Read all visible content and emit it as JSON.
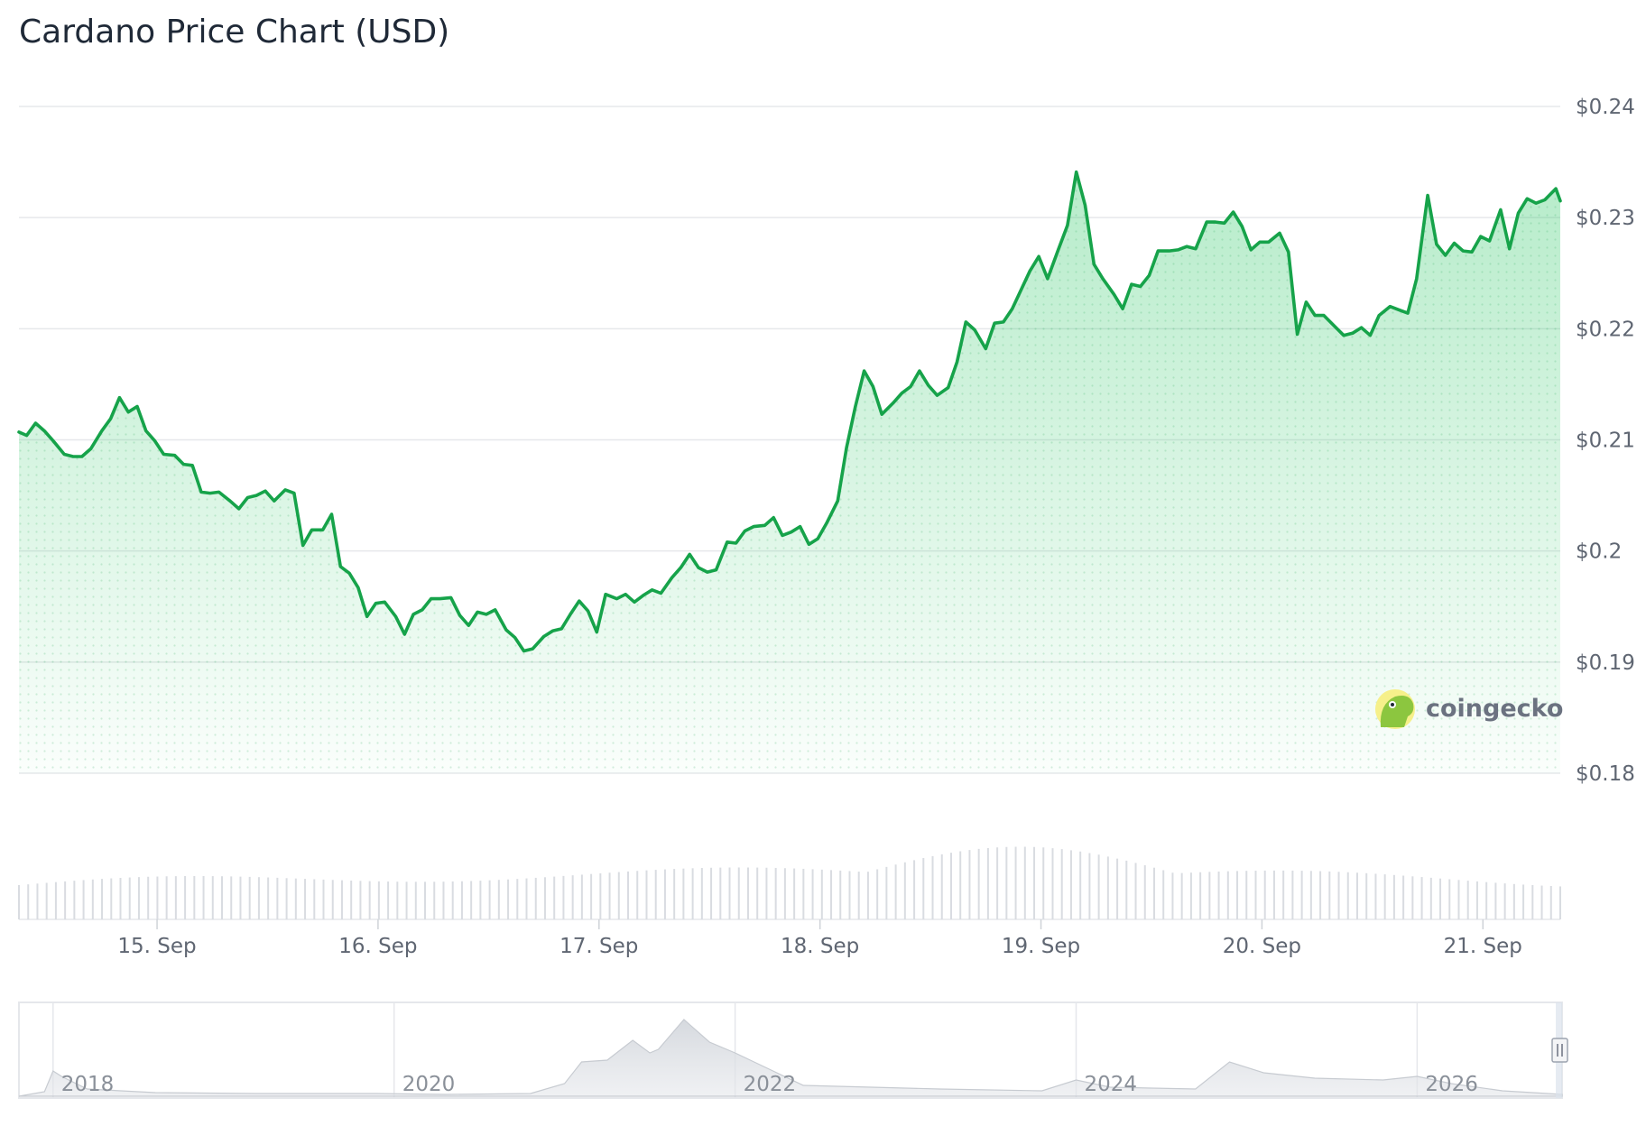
{
  "title": "Cardano Price Chart (USD)",
  "brand": {
    "name": "coingecko",
    "logo_icon": "gecko-logo-icon"
  },
  "colors": {
    "line": "#16a34a",
    "area": "#22c55e",
    "grid": "#e6e8eb",
    "volume": "#d9dce1",
    "navigator": "#e5e7eb"
  },
  "chart_data": {
    "type": "line",
    "title": "Cardano Price Chart (USD)",
    "ylim": [
      0.18,
      0.24
    ],
    "xlim": [
      14.375,
      21.35
    ],
    "y_ticks": [
      "$0.24",
      "$0.23",
      "$0.22",
      "$0.21",
      "$0.2",
      "$0.19",
      "$0.18"
    ],
    "y_tick_values": [
      0.24,
      0.23,
      0.22,
      0.21,
      0.2,
      0.19,
      0.18
    ],
    "x_ticks": [
      "15. Sep",
      "16. Sep",
      "17. Sep",
      "18. Sep",
      "19. Sep",
      "20. Sep",
      "21. Sep"
    ],
    "x_tick_values": [
      15,
      16,
      17,
      18,
      19,
      20,
      21
    ],
    "grid": true,
    "series": [
      {
        "x": [
          14.375,
          14.41,
          14.45,
          14.49,
          14.53,
          14.58,
          14.62,
          14.66,
          14.7,
          14.75,
          14.79,
          14.83,
          14.87,
          14.91,
          14.95,
          14.99,
          15.03,
          15.08,
          15.12,
          15.16,
          15.2,
          15.24,
          15.28,
          15.33,
          15.37,
          15.41,
          15.45,
          15.49,
          15.53,
          15.58,
          15.62,
          15.66,
          15.7,
          15.75,
          15.79,
          15.83,
          15.87,
          15.91,
          15.95,
          15.99,
          16.03,
          16.08,
          16.12,
          16.16,
          16.2,
          16.24,
          16.28,
          16.33,
          16.37,
          16.41,
          16.45,
          16.49,
          16.53,
          16.58,
          16.62,
          16.66,
          16.7,
          16.75,
          16.79,
          16.83,
          16.87,
          16.91,
          16.95,
          16.99,
          17.03,
          17.08,
          17.12,
          17.16,
          17.2,
          17.24,
          17.28,
          17.33,
          17.37,
          17.41,
          17.45,
          17.49,
          17.53,
          17.58,
          17.62,
          17.66,
          17.7,
          17.75,
          17.79,
          17.83,
          17.87,
          17.91,
          17.95,
          17.99,
          18.03,
          18.08,
          18.12,
          18.16,
          18.2,
          18.24,
          18.28,
          18.33,
          18.37,
          18.41,
          18.45,
          18.49,
          18.53,
          18.58,
          18.62,
          18.66,
          18.7,
          18.75,
          18.79,
          18.83,
          18.87,
          18.91,
          18.95,
          18.99,
          19.03,
          19.08,
          19.12,
          19.16,
          19.2,
          19.24,
          19.28,
          19.33,
          19.37,
          19.41,
          19.45,
          19.49,
          19.53,
          19.58,
          19.62,
          19.66,
          19.7,
          19.75,
          19.79,
          19.83,
          19.87,
          19.91,
          19.95,
          19.99,
          20.03,
          20.08,
          20.12,
          20.16,
          20.2,
          20.24,
          20.28,
          20.33,
          20.37,
          20.41,
          20.45,
          20.49,
          20.53,
          20.58,
          20.62,
          20.66,
          20.7,
          20.75,
          20.79,
          20.83,
          20.87,
          20.91,
          20.95,
          20.99,
          21.03,
          21.08,
          21.12,
          21.16,
          21.2,
          21.24,
          21.28,
          21.33,
          21.35
        ],
        "values": [
          0.2107,
          0.2104,
          0.2115,
          0.2108,
          0.2099,
          0.2087,
          0.2085,
          0.2085,
          0.2092,
          0.2108,
          0.2119,
          0.2138,
          0.2125,
          0.213,
          0.2108,
          0.2099,
          0.2087,
          0.2086,
          0.2078,
          0.2077,
          0.2053,
          0.2052,
          0.2053,
          0.2045,
          0.2038,
          0.2048,
          0.205,
          0.2054,
          0.2045,
          0.2055,
          0.2052,
          0.2005,
          0.2019,
          0.2019,
          0.2033,
          0.1986,
          0.198,
          0.1967,
          0.1941,
          0.1953,
          0.1954,
          0.1941,
          0.1925,
          0.1943,
          0.1947,
          0.1957,
          0.1957,
          0.1958,
          0.1942,
          0.1933,
          0.1945,
          0.1943,
          0.1947,
          0.1929,
          0.1922,
          0.191,
          0.1912,
          0.1923,
          0.1928,
          0.193,
          0.1943,
          0.1955,
          0.1946,
          0.1927,
          0.1961,
          0.1957,
          0.1961,
          0.1954,
          0.196,
          0.1965,
          0.1962,
          0.1976,
          0.1985,
          0.1997,
          0.1985,
          0.1981,
          0.1983,
          0.2008,
          0.2007,
          0.2018,
          0.2022,
          0.2023,
          0.203,
          0.2014,
          0.2017,
          0.2022,
          0.2006,
          0.2011,
          0.2025,
          0.2045,
          0.2093,
          0.213,
          0.2162,
          0.2148,
          0.2123,
          0.2133,
          0.2142,
          0.2148,
          0.2162,
          0.2149,
          0.214,
          0.2147,
          0.217,
          0.2206,
          0.2199,
          0.2182,
          0.2205,
          0.2206,
          0.2218,
          0.2235,
          0.2252,
          0.2265,
          0.2245,
          0.2272,
          0.2293,
          0.2341,
          0.2311,
          0.2258,
          0.2245,
          0.2231,
          0.2218,
          0.224,
          0.2238,
          0.2248,
          0.227,
          0.227,
          0.2271,
          0.2274,
          0.2272,
          0.2296,
          0.2296,
          0.2295,
          0.2305,
          0.2292,
          0.2271,
          0.2278,
          0.2278,
          0.2286,
          0.2269,
          0.2195,
          0.2224,
          0.2212,
          0.2212,
          0.2202,
          0.2194,
          0.2196,
          0.2201,
          0.2194,
          0.2212,
          0.222,
          0.2217,
          0.2214,
          0.2245,
          0.232,
          0.2276,
          0.2266,
          0.2277,
          0.227,
          0.2269,
          0.2283,
          0.2279,
          0.2307,
          0.2272,
          0.2304,
          0.2317,
          0.2313,
          0.2316,
          0.2326,
          0.2315
        ]
      }
    ],
    "navigator": {
      "x_ticks": [
        "2018",
        "2020",
        "2022",
        "2024",
        "2026"
      ],
      "x_tick_values": [
        2018,
        2020,
        2022,
        2024,
        2026
      ]
    }
  }
}
